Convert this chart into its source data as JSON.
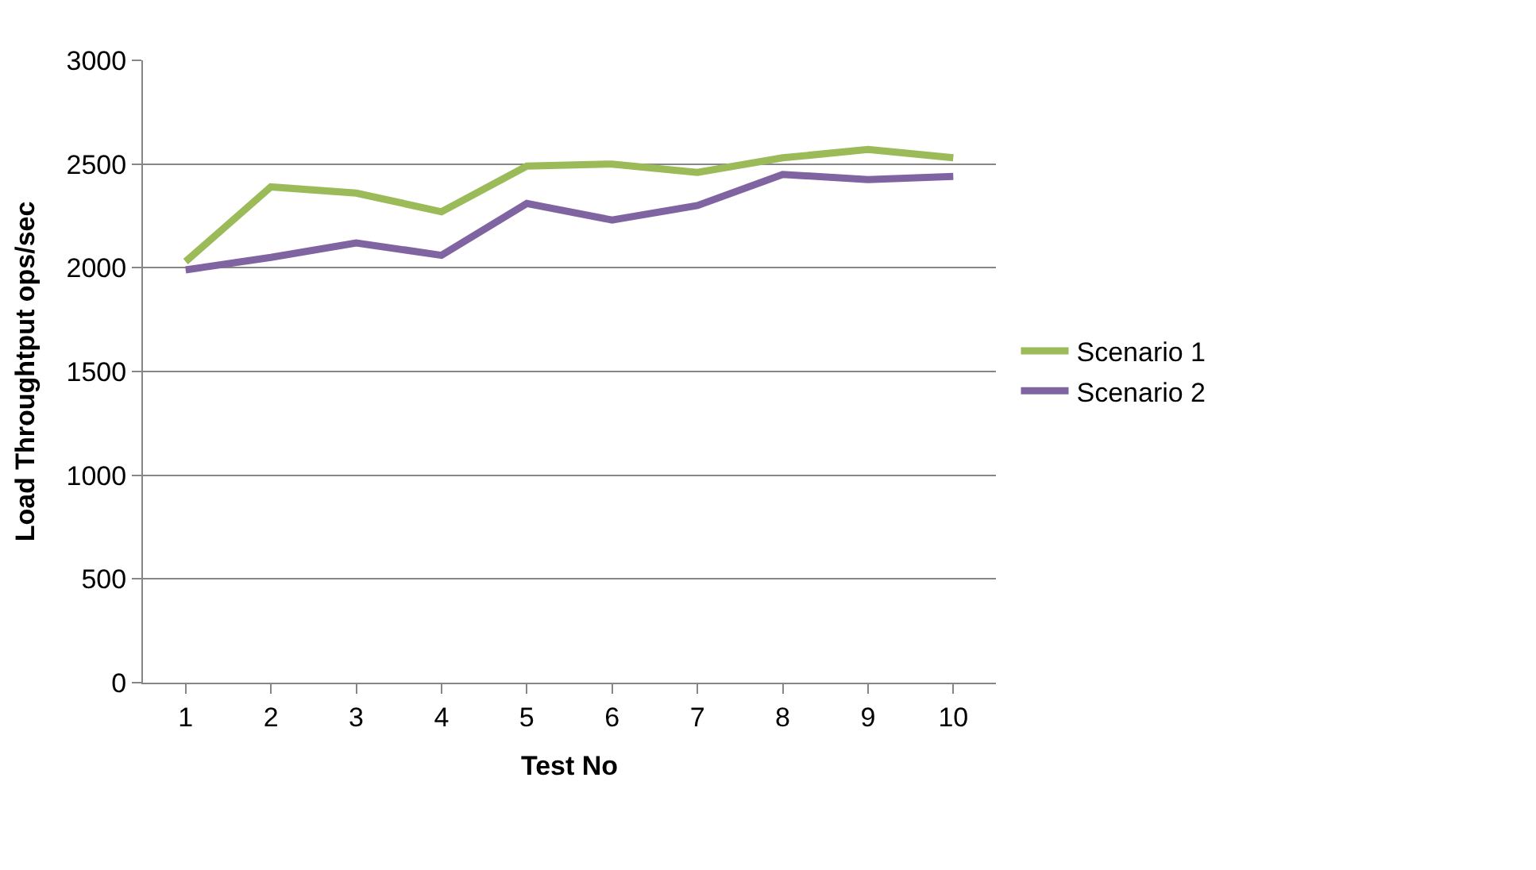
{
  "chart_data": {
    "type": "line",
    "xlabel": "Test No",
    "ylabel": "Load Throughtput ops/sec",
    "categories": [
      "1",
      "2",
      "3",
      "4",
      "5",
      "6",
      "7",
      "8",
      "9",
      "10"
    ],
    "series": [
      {
        "name": "Scenario 1",
        "color": "#9bbb59",
        "values": [
          2030,
          2390,
          2360,
          2270,
          2490,
          2500,
          2460,
          2530,
          2570,
          2530
        ]
      },
      {
        "name": "Scenario 2",
        "color": "#8064a2",
        "values": [
          1990,
          2050,
          2120,
          2060,
          2310,
          2230,
          2300,
          2450,
          2425,
          2440
        ]
      }
    ],
    "ylim": [
      0,
      3000
    ],
    "yticks": [
      0,
      500,
      1000,
      1500,
      2000,
      2500,
      3000
    ],
    "grid": "y",
    "legend": "right",
    "marker": "none"
  }
}
